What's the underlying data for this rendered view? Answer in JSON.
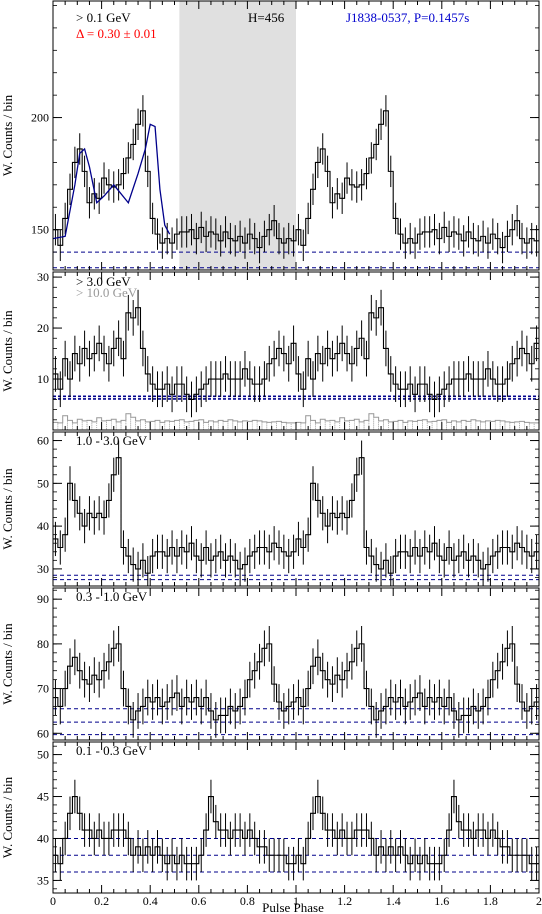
{
  "figure": {
    "xlabel": "Pulse Phase",
    "xticks": [
      "0",
      "0.2",
      "0.4",
      "0.6",
      "0.8",
      "1",
      "1.2",
      "1.4",
      "1.6",
      "1.8",
      "2"
    ],
    "xlim": [
      0,
      2
    ]
  },
  "colors": {
    "axes": "#000000",
    "histogram": "#000000",
    "fit": "#00008b",
    "background_line": "#00008b",
    "delta_text": "#ff0000",
    "pulsar_text": "#0000cd",
    "highenergy": "#999999",
    "offpulse_band": "#e0e0e0"
  },
  "chart_data": [
    {
      "type": "histogram",
      "panel": "total",
      "ylabel": "W. Counts / bin",
      "ylim": [
        132,
        252
      ],
      "yticks": [
        150,
        200
      ],
      "labels": {
        "energy": "> 0.1 GeV",
        "delta": "Δ = 0.30 ± 0.01",
        "h": "H=456",
        "pulsar": "J1838-0537, P=0.1457s"
      },
      "offpulse_region": [
        0.52,
        1.0
      ],
      "background_levels": [
        140,
        133
      ],
      "bins": 50,
      "values": [
        150,
        143,
        155,
        168,
        180,
        186,
        176,
        162,
        166,
        164,
        173,
        170,
        169,
        170,
        175,
        182,
        188,
        197,
        203,
        176,
        155,
        148,
        144,
        146,
        144,
        148,
        149,
        149,
        150,
        146,
        151,
        147,
        149,
        148,
        145,
        149,
        146,
        145,
        147,
        144,
        148,
        146,
        142,
        147,
        150,
        154,
        146,
        144,
        146,
        145
      ],
      "errors": 7,
      "fit": {
        "phases": [
          0.0,
          0.05,
          0.09,
          0.11,
          0.13,
          0.15,
          0.18,
          0.21,
          0.25,
          0.31,
          0.35,
          0.38,
          0.4,
          0.42,
          0.44,
          0.46,
          0.48
        ],
        "values": [
          146,
          147,
          170,
          184,
          186,
          178,
          162,
          165,
          170,
          162,
          175,
          186,
          197,
          196,
          168,
          152,
          148
        ]
      }
    },
    {
      "type": "histogram",
      "panel": "above-3GeV",
      "ylabel": "W. Counts / bin",
      "ylim": [
        0,
        31
      ],
      "yticks": [
        10,
        20,
        30
      ],
      "labels": {
        "energy": "> 3.0 GeV",
        "energy2": "> 10.0 GeV"
      },
      "background_levels": [
        6.6,
        6.1
      ],
      "bins": 50,
      "values": [
        11,
        8,
        14,
        10,
        15,
        13,
        16,
        14,
        15,
        17,
        15,
        13,
        16,
        18,
        14,
        23,
        22,
        24,
        16,
        11,
        9,
        8,
        8,
        9,
        7,
        9,
        9,
        7,
        6,
        7,
        8,
        9,
        10,
        10,
        10,
        11,
        10,
        10,
        10,
        12,
        10,
        9,
        9,
        10,
        13,
        14,
        16,
        15,
        13,
        17
      ],
      "errors": 3.5,
      "highenergy_values": [
        1.5,
        1.4,
        2.8,
        1.9,
        1.4,
        2.1,
        1.8,
        1.9,
        1.6,
        2.4,
        1.8,
        1.9,
        2.1,
        1.6,
        1.9,
        3.2,
        2.5,
        1.8,
        2.0,
        1.6,
        1.7,
        1.9,
        1.5,
        1.8,
        1.7,
        1.9,
        2.0,
        1.6,
        1.7,
        1.9,
        2.0,
        1.5,
        1.8,
        1.6,
        1.9,
        1.7,
        2.0,
        1.8,
        1.6,
        1.8,
        1.7,
        1.9,
        1.8,
        1.6,
        1.5,
        1.6,
        1.7,
        1.5,
        1.4,
        1.4
      ]
    },
    {
      "type": "histogram",
      "panel": "1-3GeV",
      "ylabel": "W. Counts / bin",
      "ylim": [
        26,
        62
      ],
      "yticks": [
        30,
        40,
        50,
        60
      ],
      "labels": {
        "energy": "1.0 - 3.0 GeV"
      },
      "background_levels": [
        28.5,
        27.5
      ],
      "bins": 50,
      "values": [
        37,
        35,
        38,
        50,
        46,
        43,
        40,
        43,
        42,
        43,
        42,
        46,
        52,
        56,
        35,
        33,
        31,
        30,
        32,
        29,
        33,
        34,
        34,
        33,
        35,
        33,
        35,
        34,
        36,
        33,
        32,
        35,
        32,
        33,
        34,
        32,
        33,
        32,
        30,
        31,
        33,
        34,
        35,
        35,
        34,
        36,
        35,
        34,
        33,
        34
      ],
      "errors": 4
    },
    {
      "type": "histogram",
      "panel": "0.3-1GeV",
      "ylabel": "W. Counts / bin",
      "ylim": [
        58.5,
        92.5
      ],
      "yticks": [
        60,
        70,
        80,
        90
      ],
      "labels": {
        "energy": "0.3 - 1.0 GeV"
      },
      "background_levels": [
        65.5,
        62.5,
        59.7
      ],
      "bins": 50,
      "values": [
        68,
        66,
        70,
        75,
        77,
        74,
        72,
        71,
        73,
        72,
        74,
        76,
        79,
        80,
        70,
        66,
        63,
        65,
        66,
        68,
        67,
        68,
        66,
        67,
        68,
        69,
        66,
        68,
        67,
        68,
        66,
        68,
        65,
        63,
        64,
        64,
        66,
        65,
        66,
        68,
        72,
        74,
        76,
        79,
        80,
        71,
        67,
        65,
        66,
        67
      ],
      "errors": 4
    },
    {
      "type": "histogram",
      "panel": "0.1-0.3GeV",
      "ylabel": "W. Counts / bin",
      "ylim": [
        33.5,
        51.5
      ],
      "yticks": [
        35,
        40,
        45,
        50
      ],
      "labels": {
        "energy": "0.1 - 0.3 GeV"
      },
      "background_levels": [
        40,
        38,
        36
      ],
      "bins": 50,
      "values": [
        38,
        37,
        40,
        43,
        45,
        43,
        41,
        41,
        40,
        41,
        40,
        40,
        41,
        41,
        41,
        40,
        38,
        39,
        38,
        39,
        38,
        39,
        38,
        37,
        38,
        37,
        38,
        37,
        37,
        37,
        38,
        41,
        45,
        42,
        41,
        41,
        40,
        41,
        41,
        40,
        41,
        40,
        39,
        39,
        38,
        38,
        38,
        38,
        37,
        37
      ],
      "errors": 2
    }
  ]
}
